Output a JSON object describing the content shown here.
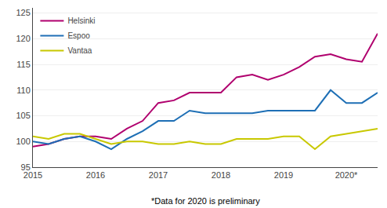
{
  "chart_data": {
    "type": "line",
    "categories": [
      "2015",
      null,
      null,
      null,
      "2016",
      null,
      null,
      null,
      "2017",
      null,
      null,
      null,
      "2018",
      null,
      null,
      null,
      "2019",
      null,
      null,
      null,
      "2020*",
      null,
      null
    ],
    "series": [
      {
        "name": "Helsinki",
        "color": "#b0006e",
        "values": [
          99.0,
          99.5,
          100.5,
          101.0,
          101.0,
          100.5,
          102.5,
          104.0,
          107.5,
          108.0,
          109.5,
          109.5,
          109.5,
          112.5,
          113.0,
          112.0,
          113.0,
          114.5,
          116.5,
          117.0,
          116.0,
          115.5,
          121.0
        ]
      },
      {
        "name": "Espoo",
        "color": "#1e6fb5",
        "values": [
          100.0,
          99.5,
          100.5,
          101.0,
          100.0,
          98.5,
          100.5,
          102.0,
          104.0,
          104.0,
          106.0,
          105.5,
          105.5,
          105.5,
          105.5,
          106.0,
          106.0,
          106.0,
          106.0,
          110.0,
          107.5,
          107.5,
          109.5
        ]
      },
      {
        "name": "Vantaa",
        "color": "#c8c800",
        "values": [
          101.0,
          100.5,
          101.5,
          101.5,
          100.5,
          99.5,
          100.0,
          100.0,
          99.5,
          99.5,
          100.0,
          99.5,
          99.5,
          100.5,
          100.5,
          100.5,
          101.0,
          101.0,
          98.5,
          101.0,
          101.5,
          102.0,
          102.5
        ]
      }
    ],
    "ylim": [
      95,
      126
    ],
    "yticks": [
      95,
      100,
      105,
      110,
      115,
      120,
      125
    ],
    "grid": true,
    "legend": "upper left",
    "annotations": [
      "*Data for 2020 is preliminary"
    ]
  }
}
